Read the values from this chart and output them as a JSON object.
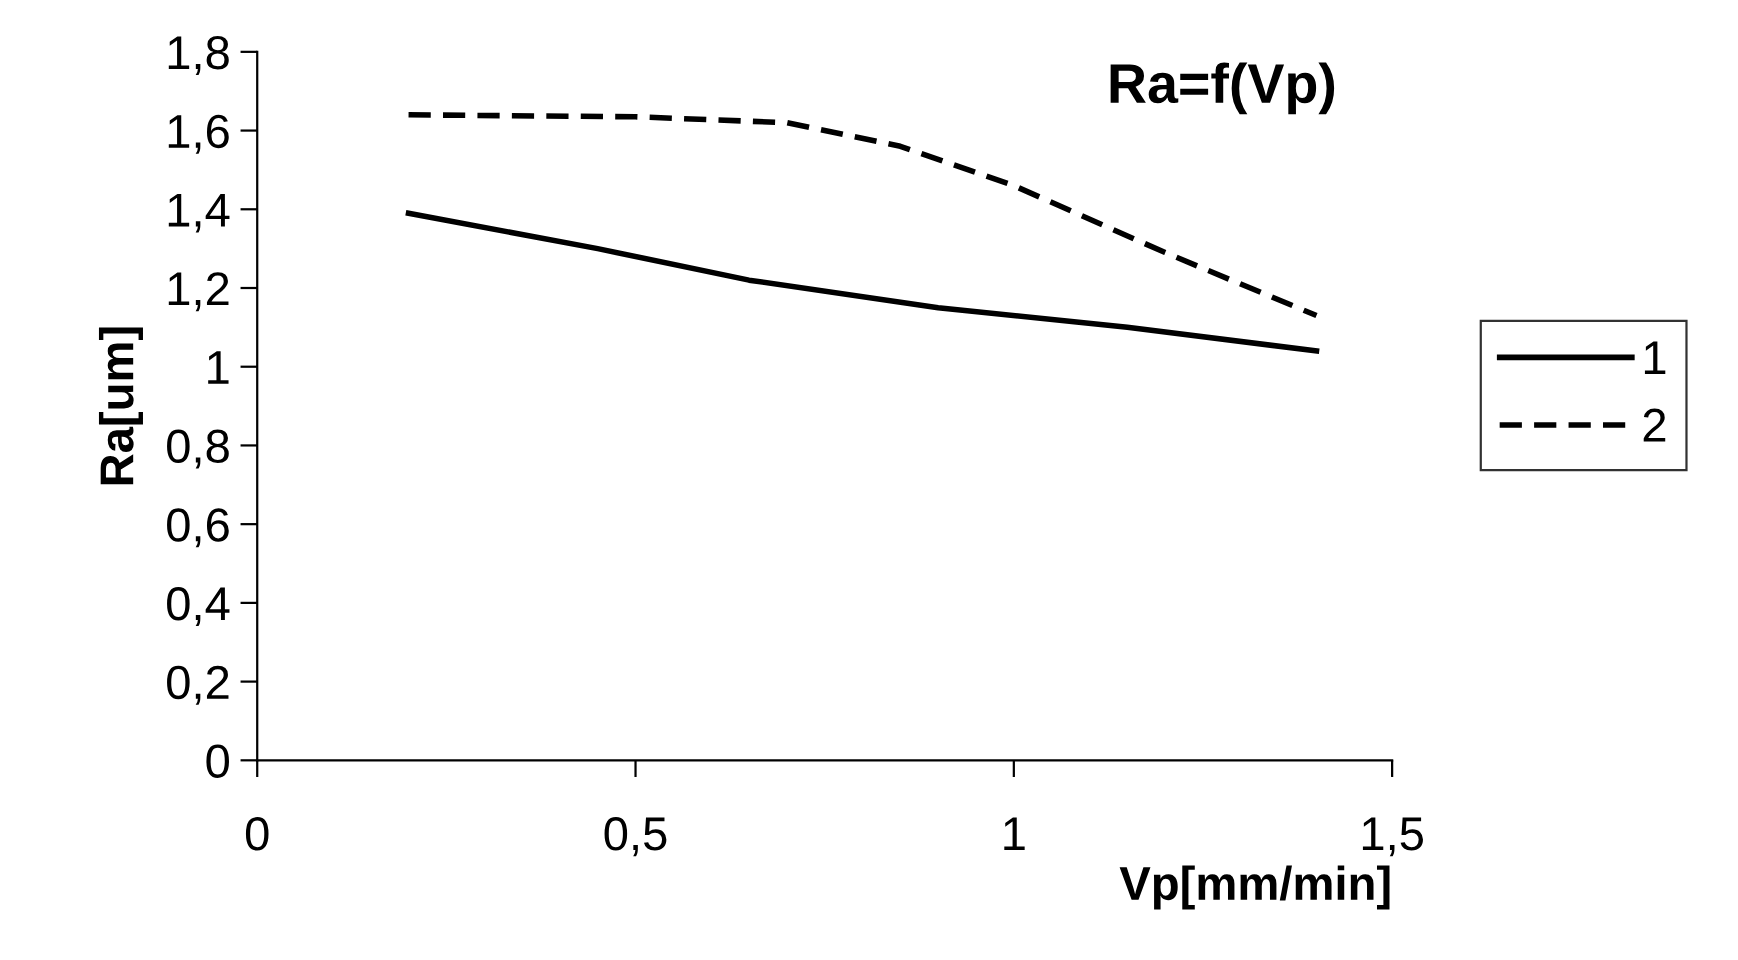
{
  "chart_data": {
    "type": "line",
    "title": "Ra=f(Vp)",
    "xlabel": "Vp[mm/min]",
    "ylabel": "Ra[um]",
    "xlim": [
      0,
      1.5
    ],
    "xticks": [
      0,
      {
        "value": 0.5,
        "label": "0,5"
      },
      1,
      {
        "value": 1.5,
        "label": "1,5"
      }
    ],
    "ylim": [
      0,
      1.8
    ],
    "yticks": [
      0,
      {
        "value": 0.2,
        "label": "0,2"
      },
      {
        "value": 0.4,
        "label": "0,4"
      },
      {
        "value": 0.6,
        "label": "0,6"
      },
      {
        "value": 0.8,
        "label": "0,8"
      },
      1,
      {
        "value": 1.2,
        "label": "1,2"
      },
      {
        "value": 1.4,
        "label": "1,4"
      },
      {
        "value": 1.6,
        "label": "1,6"
      },
      {
        "value": 1.8,
        "label": "1,8"
      }
    ],
    "grid": false,
    "legend": "right",
    "marker": "none",
    "series": [
      {
        "name": "1",
        "color": "#000000",
        "line_style": "solid",
        "x": [
          0.2,
          0.45,
          0.65,
          0.9,
          1.15,
          1.4
        ],
        "values": [
          1.39,
          1.3,
          1.22,
          1.15,
          1.1,
          1.04
        ]
      },
      {
        "name": "2",
        "color": "#000000",
        "line_style": "dashed",
        "x": [
          0.2,
          0.5,
          0.7,
          0.85,
          1.0,
          1.2,
          1.4
        ],
        "values": [
          1.64,
          1.635,
          1.62,
          1.56,
          1.46,
          1.29,
          1.13
        ]
      }
    ]
  }
}
